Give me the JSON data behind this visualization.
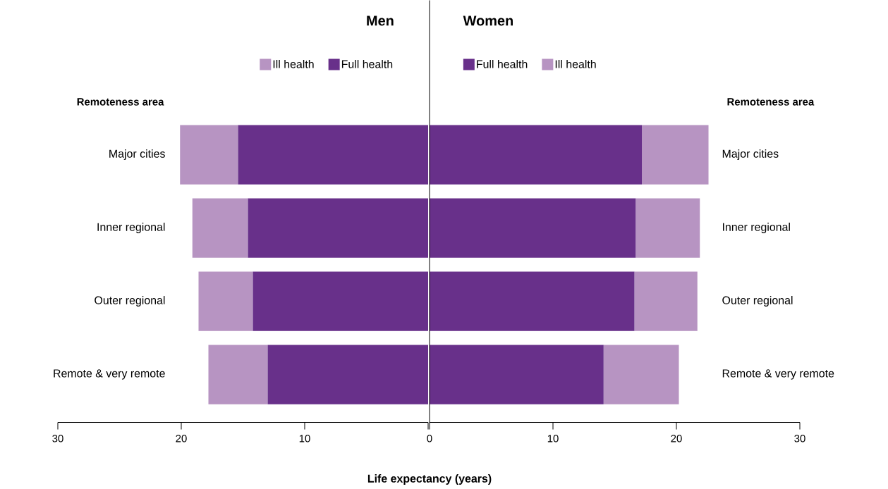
{
  "chart_data": [
    {
      "type": "bar",
      "orientation": "horizontal",
      "stacked": true,
      "title": "Men",
      "ylabel": "Remoteness area",
      "categories": [
        "Major cities",
        "Inner regional",
        "Outer regional",
        "Remote & very remote"
      ],
      "series": [
        {
          "name": "Full health",
          "color": "#68308a",
          "values": [
            15.4,
            14.6,
            14.2,
            13.0
          ]
        },
        {
          "name": "Ill health",
          "color": "#b794c2",
          "values": [
            4.7,
            4.5,
            4.4,
            4.8
          ]
        }
      ],
      "xlim": [
        30,
        0
      ],
      "xticks": [
        {
          "value": 0,
          "label": null
        },
        10,
        20,
        30
      ],
      "legend": "top",
      "grid": false
    },
    {
      "type": "bar",
      "orientation": "horizontal",
      "stacked": true,
      "title": "Women",
      "ylabel": "Remoteness area",
      "xlabel": "Life expectancy (years)",
      "categories": [
        "Major cities",
        "Inner regional",
        "Outer regional",
        "Remote & very remote"
      ],
      "series": [
        {
          "name": "Full health",
          "color": "#68308a",
          "values": [
            17.2,
            16.7,
            16.6,
            14.1
          ]
        },
        {
          "name": "Ill health",
          "color": "#b794c2",
          "values": [
            5.4,
            5.2,
            5.1,
            6.1
          ]
        }
      ],
      "xlim": [
        0,
        30
      ],
      "xticks": [
        0,
        10,
        20,
        30
      ],
      "legend": "top",
      "grid": false
    }
  ]
}
